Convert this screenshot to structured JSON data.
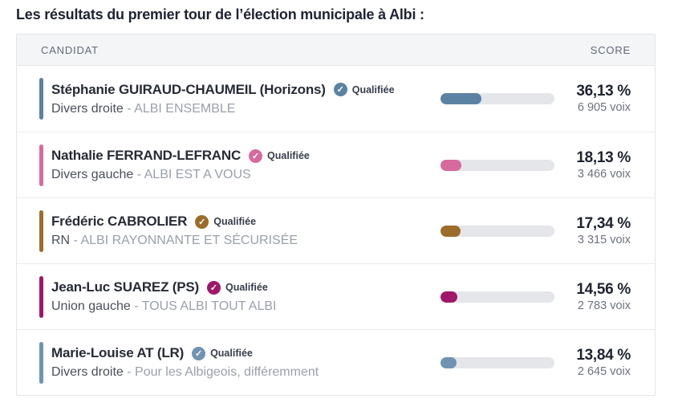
{
  "page": {
    "title": "Les résultats du premier tour de l’élection municipale à Albi :"
  },
  "table": {
    "header": {
      "candidate": "CANDIDAT",
      "score": "SCORE"
    },
    "qualified_label": "Qualifiée",
    "check_icon": "✓",
    "list_separator": "-",
    "track_color": "#e4e6e9",
    "rows": [
      {
        "name": "Stéphanie GUIRAUD-CHAUMEIL (Horizons)",
        "nuance": "Divers droite",
        "list": "ALBI ENSEMBLE",
        "percent": "36,13 %",
        "votes": "6 905 voix",
        "pct_value": 36.13,
        "color": "#5c82a3"
      },
      {
        "name": "Nathalie FERRAND-LEFRANC",
        "nuance": "Divers gauche",
        "list": "ALBI EST A VOUS",
        "percent": "18,13 %",
        "votes": "3 466 voix",
        "pct_value": 18.13,
        "color": "#d66a9d"
      },
      {
        "name": "Frédéric CABROLIER",
        "nuance": "RN",
        "list": "ALBI RAYONNANTE ET SÉCURISÉE",
        "percent": "17,34 %",
        "votes": "3 315 voix",
        "pct_value": 17.34,
        "color": "#9c6d29"
      },
      {
        "name": "Jean-Luc SUAREZ (PS)",
        "nuance": "Union gauche",
        "list": "TOUS ALBI TOUT ALBI",
        "percent": "14,56 %",
        "votes": "2 783 voix",
        "pct_value": 14.56,
        "color": "#a0176a"
      },
      {
        "name": "Marie-Louise AT (LR)",
        "nuance": "Divers droite",
        "list": "Pour les Albigeois, différemment",
        "percent": "13,84 %",
        "votes": "2 645 voix",
        "pct_value": 13.84,
        "color": "#7093b3"
      }
    ]
  },
  "chart_data": {
    "type": "bar",
    "orientation": "horizontal",
    "title": "Les résultats du premier tour de l’élection municipale à Albi",
    "categories": [
      "Stéphanie GUIRAUD-CHAUMEIL (Horizons) — Divers droite - ALBI ENSEMBLE",
      "Nathalie FERRAND-LEFRANC — Divers gauche - ALBI EST A VOUS",
      "Frédéric CABROLIER — RN - ALBI RAYONNANTE ET SÉCURISÉE",
      "Jean-Luc SUAREZ (PS) — Union gauche - TOUS ALBI TOUT ALBI",
      "Marie-Louise AT (LR) — Divers droite - Pour les Albigeois, différemment"
    ],
    "series": [
      {
        "name": "Score (%)",
        "values": [
          36.13,
          18.13,
          17.34,
          14.56,
          13.84
        ]
      },
      {
        "name": "Voix",
        "values": [
          6905,
          3466,
          3315,
          2783,
          2645
        ]
      }
    ],
    "annotations": [
      "Qualifiée",
      "Qualifiée",
      "Qualifiée",
      "Qualifiée",
      "Qualifiée"
    ],
    "bar_colors": [
      "#5c82a3",
      "#d66a9d",
      "#9c6d29",
      "#a0176a",
      "#7093b3"
    ],
    "xlim": [
      0,
      100
    ],
    "xlabel": "",
    "ylabel": "",
    "grid": false,
    "legend_position": "none"
  }
}
